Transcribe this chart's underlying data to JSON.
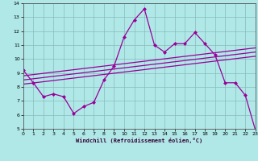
{
  "xlabel": "Windchill (Refroidissement éolien,°C)",
  "ylabel": "",
  "bg_color": "#b0e8e8",
  "line_color": "#990099",
  "xmin": 0,
  "xmax": 23,
  "ymin": 5,
  "ymax": 14,
  "x_ticks": [
    0,
    1,
    2,
    3,
    4,
    5,
    6,
    7,
    8,
    9,
    10,
    11,
    12,
    13,
    14,
    15,
    16,
    17,
    18,
    19,
    20,
    21,
    22,
    23
  ],
  "y_ticks": [
    5,
    6,
    7,
    8,
    9,
    10,
    11,
    12,
    13,
    14
  ],
  "line1_x": [
    0,
    1,
    2,
    3,
    4,
    5,
    6,
    7,
    8,
    9,
    10,
    11,
    12,
    13,
    14,
    15,
    16,
    17,
    18,
    19,
    20,
    21,
    22,
    23
  ],
  "line1_y": [
    9.2,
    8.3,
    7.3,
    7.5,
    7.3,
    6.1,
    6.6,
    6.9,
    8.5,
    9.5,
    11.6,
    12.8,
    13.6,
    11.0,
    10.5,
    11.1,
    11.1,
    11.9,
    11.1,
    10.3,
    8.3,
    8.3,
    7.4,
    4.9
  ],
  "line2_x": [
    0,
    23
  ],
  "line2_y": [
    8.2,
    10.2
  ],
  "line3_x": [
    0,
    23
  ],
  "line3_y": [
    8.5,
    10.5
  ],
  "line4_x": [
    0,
    23
  ],
  "line4_y": [
    8.8,
    10.8
  ]
}
